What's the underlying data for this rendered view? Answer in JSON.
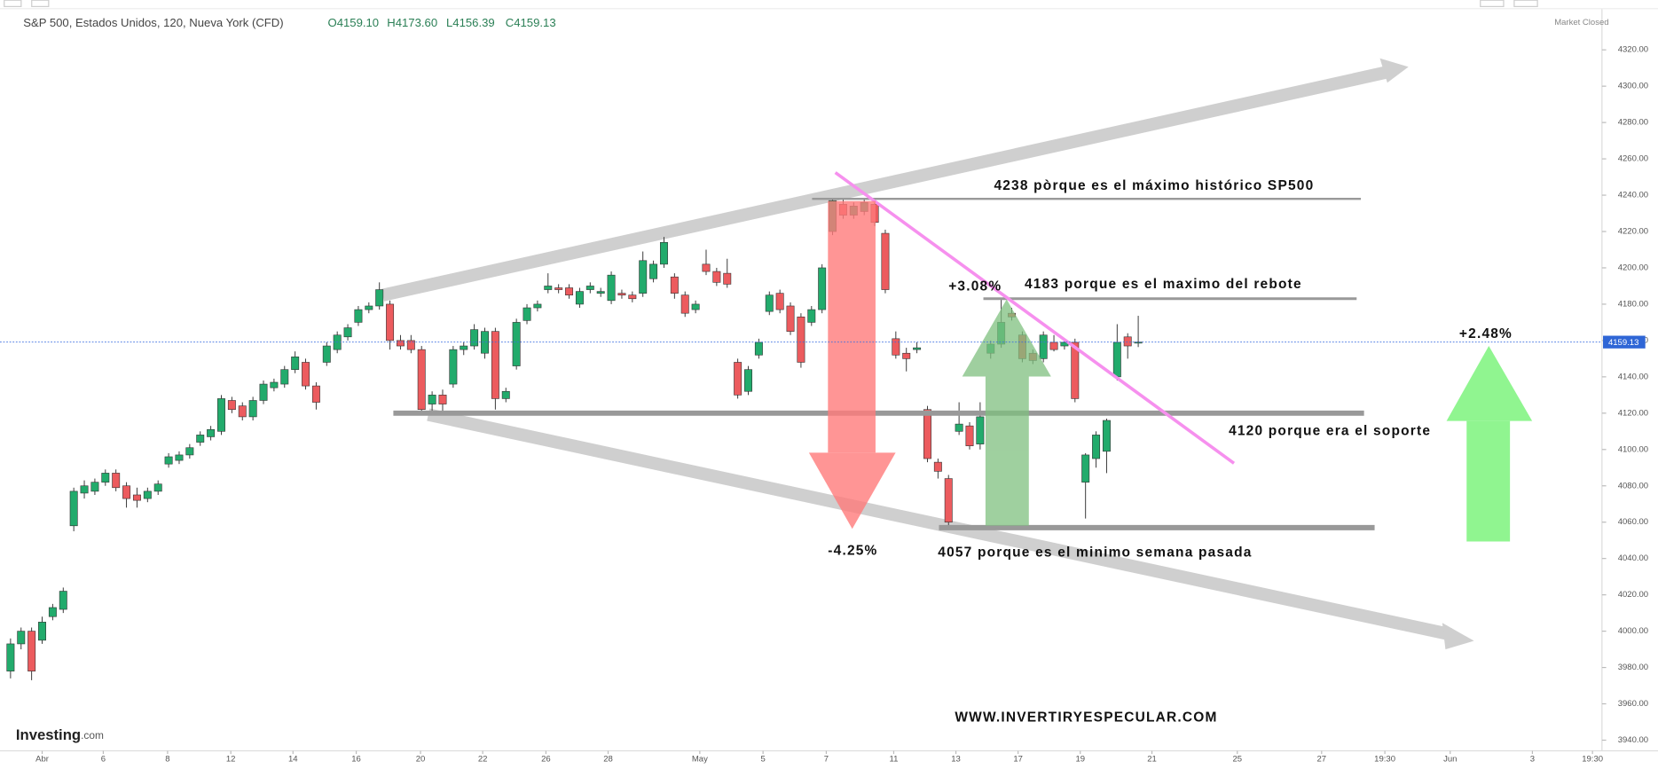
{
  "chart_data": {
    "type": "candlestick",
    "title": "S&P 500, Estados Unidos, 120, Nueva York (CFD)",
    "ohlc_labels": [
      "O4159.10",
      "H4173.60",
      "L4156.39",
      "C4159.13"
    ],
    "status": "Market Closed",
    "brand": "Investing",
    "brand_suffix": ".com",
    "up_color": "#22ab6c",
    "down_color": "#ec5b5e",
    "x": [
      0,
      1,
      2,
      3,
      4,
      5,
      6,
      7,
      8,
      9,
      10,
      11,
      12,
      13,
      14,
      15,
      16,
      17,
      18,
      19,
      20,
      21,
      22,
      23,
      24,
      25,
      26,
      27,
      28,
      29,
      30,
      31,
      32,
      33,
      34,
      35,
      36,
      37,
      38,
      39,
      40,
      41,
      42,
      43,
      44,
      45,
      46,
      47,
      48,
      49,
      50,
      51,
      52,
      53,
      54,
      55,
      56,
      57,
      58,
      59,
      60,
      61,
      62,
      63,
      64,
      65,
      66,
      67,
      68,
      69,
      70,
      71,
      72,
      73,
      74,
      75,
      76,
      77,
      78,
      79,
      80,
      81,
      82,
      83,
      84,
      85,
      86,
      87,
      88,
      89,
      90,
      91,
      92,
      93,
      94,
      95,
      96,
      97,
      98,
      99,
      100,
      101,
      102,
      103,
      104,
      105,
      106,
      107
    ],
    "open": [
      3978,
      3993,
      4000,
      3995,
      4008,
      4012,
      4058,
      4076,
      4077,
      4082,
      4087,
      4080,
      4075,
      4073,
      4077,
      4092,
      4094,
      4097,
      4104,
      4107,
      4110,
      4127,
      4124,
      4118,
      4127,
      4134,
      4136,
      4144,
      4148,
      4135,
      4148,
      4155,
      4162,
      4170,
      4177,
      4179,
      4180,
      4160,
      4160,
      4155,
      4125,
      4130,
      4136,
      4155,
      4157,
      4153,
      4165,
      4128,
      4146,
      4171,
      4178,
      4188,
      4189,
      4189,
      4180,
      4188,
      4186,
      4182,
      4186,
      4185,
      4186,
      4194,
      4202,
      4195,
      4185,
      4177,
      4202,
      4198,
      4197,
      4148,
      4132,
      4152,
      4176,
      4186,
      4179,
      4173,
      4170,
      4177,
      4220,
      4235,
      4229,
      4231,
      4235,
      4219,
      4161,
      4153,
      4155,
      4122,
      4093,
      4084,
      4110,
      4113,
      4103,
      4153,
      4158,
      4175,
      4163,
      4153,
      4150,
      4159,
      4157,
      4159,
      4082,
      4095,
      4099,
      4140,
      4162,
      4159.1
    ],
    "high": [
      3996,
      4002,
      4002,
      4008,
      4015,
      4024,
      4079,
      4083,
      4084,
      4089,
      4089,
      4082,
      4079,
      4079,
      4083,
      4098,
      4099,
      4103,
      4110,
      4113,
      4130,
      4129,
      4126,
      4129,
      4138,
      4139,
      4146,
      4154,
      4150,
      4137,
      4159,
      4165,
      4169,
      4179,
      4181,
      4192,
      4182,
      4163,
      4163,
      4157,
      4132,
      4133,
      4157,
      4159,
      4169,
      4167,
      4167,
      4134,
      4172,
      4180,
      4182,
      4197,
      4191,
      4191,
      4189,
      4192,
      4189,
      4198,
      4188,
      4187,
      4209,
      4204,
      4217,
      4197,
      4187,
      4182,
      4210,
      4200,
      4205,
      4150,
      4146,
      4161,
      4187,
      4188,
      4181,
      4175,
      4179,
      4202,
      4238,
      4238,
      4236,
      4238,
      4237,
      4221,
      4165,
      4156,
      4159,
      4124,
      4095,
      4086,
      4126,
      4115,
      4126,
      4160,
      4183,
      4178,
      4165,
      4155,
      4165,
      4163,
      4161,
      4161,
      4098,
      4110,
      4117,
      4169,
      4164,
      4173.6
    ],
    "low": [
      3974,
      3990,
      3973,
      3993,
      4006,
      4010,
      4055,
      4073,
      4075,
      4080,
      4077,
      4068,
      4068,
      4071,
      4075,
      4090,
      4092,
      4095,
      4102,
      4105,
      4108,
      4120,
      4116,
      4116,
      4125,
      4132,
      4134,
      4142,
      4133,
      4122,
      4146,
      4153,
      4160,
      4168,
      4175,
      4177,
      4155,
      4155,
      4153,
      4119,
      4119,
      4121,
      4134,
      4152,
      4155,
      4150,
      4122,
      4126,
      4144,
      4169,
      4176,
      4186,
      4186,
      4183,
      4178,
      4186,
      4184,
      4180,
      4183,
      4181,
      4184,
      4192,
      4200,
      4183,
      4173,
      4175,
      4196,
      4190,
      4189,
      4128,
      4130,
      4150,
      4174,
      4175,
      4163,
      4145,
      4168,
      4175,
      4218,
      4227,
      4227,
      4229,
      4223,
      4186,
      4150,
      4143,
      4153,
      4093,
      4084,
      4057,
      4108,
      4100,
      4100,
      4150,
      4156,
      4171,
      4148,
      4147,
      4148,
      4154,
      4155,
      4126,
      4062,
      4090,
      4087,
      4138,
      4150,
      4156.39
    ],
    "close": [
      3993,
      4000,
      3978,
      4005,
      4013,
      4022,
      4077,
      4080,
      4082,
      4087,
      4079,
      4073,
      4072,
      4077,
      4081,
      4096,
      4097,
      4101,
      4108,
      4111,
      4128,
      4122,
      4118,
      4127,
      4136,
      4137,
      4144,
      4151,
      4135,
      4126,
      4157,
      4163,
      4167,
      4177,
      4179,
      4188,
      4160,
      4157,
      4155,
      4122,
      4130,
      4125,
      4155,
      4157,
      4166,
      4165,
      4128,
      4132,
      4170,
      4178,
      4180,
      4190,
      4188,
      4185,
      4187,
      4190,
      4187,
      4196,
      4185,
      4183,
      4204,
      4202,
      4214,
      4186,
      4175,
      4180,
      4198,
      4192,
      4191,
      4130,
      4144,
      4159,
      4185,
      4177,
      4165,
      4148,
      4177,
      4200,
      4237,
      4229,
      4234,
      4236,
      4225,
      4188,
      4152,
      4150,
      4156,
      4095,
      4088,
      4060,
      4114,
      4102,
      4118,
      4158,
      4170,
      4173,
      4150,
      4149,
      4163,
      4155,
      4159,
      4128,
      4097,
      4108,
      4116,
      4159,
      4157,
      4159.13
    ],
    "last_price": {
      "value": 4159.13,
      "label": "4159.13"
    },
    "levels": [
      4238,
      4183,
      4120,
      4057
    ],
    "annotations": [
      "4238 pòrque es el máximo histórico SP500",
      "4183 porque es el maximo del rebote",
      "+3.08%",
      "+2.48%",
      "4120 porque era el soporte",
      "-4.25%",
      "4057 porque es el minimo semana pasada",
      "WWW.INVERTIRYESPECULAR.COM"
    ],
    "xlim": [
      -1,
      151
    ],
    "xticks": [
      {
        "value": 3.0,
        "label": "Abr"
      },
      {
        "value": 8.8,
        "label": "6"
      },
      {
        "value": 14.9,
        "label": "8"
      },
      {
        "value": 20.9,
        "label": "12"
      },
      {
        "value": 26.8,
        "label": "14"
      },
      {
        "value": 32.8,
        "label": "16"
      },
      {
        "value": 38.9,
        "label": "20"
      },
      {
        "value": 44.8,
        "label": "22"
      },
      {
        "value": 50.8,
        "label": "26"
      },
      {
        "value": 56.7,
        "label": "28"
      },
      {
        "value": 65.4,
        "label": "May"
      },
      {
        "value": 71.4,
        "label": "5"
      },
      {
        "value": 77.4,
        "label": "7"
      },
      {
        "value": 83.8,
        "label": "11"
      },
      {
        "value": 89.7,
        "label": "13"
      },
      {
        "value": 95.6,
        "label": "17"
      },
      {
        "value": 101.5,
        "label": "19"
      },
      {
        "value": 108.3,
        "label": "21"
      },
      {
        "value": 116.4,
        "label": "25"
      },
      {
        "value": 124.4,
        "label": "27"
      },
      {
        "value": 130.4,
        "label": "19:30"
      },
      {
        "value": 136.6,
        "label": "Jun"
      },
      {
        "value": 144.4,
        "label": "3"
      },
      {
        "value": 150.1,
        "label": "19:30"
      }
    ],
    "ylim": [
      3935,
      4345
    ],
    "yticks": [
      {
        "value": 3940,
        "label": "3940.00"
      },
      {
        "value": 3960,
        "label": "3960.00"
      },
      {
        "value": 3980,
        "label": "3980.00"
      },
      {
        "value": 4000,
        "label": "4000.00"
      },
      {
        "value": 4020,
        "label": "4020.00"
      },
      {
        "value": 4040,
        "label": "4040.00"
      },
      {
        "value": 4060,
        "label": "4060.00"
      },
      {
        "value": 4080,
        "label": "4080.00"
      },
      {
        "value": 4100,
        "label": "4100.00"
      },
      {
        "value": 4120,
        "label": "4120.00"
      },
      {
        "value": 4140,
        "label": "4140.00"
      },
      {
        "value": 4160,
        "label": "4160.00"
      },
      {
        "value": 4180,
        "label": "4180.00"
      },
      {
        "value": 4200,
        "label": "4200.00"
      },
      {
        "value": 4220,
        "label": "4220.00"
      },
      {
        "value": 4240,
        "label": "4240.00"
      },
      {
        "value": 4260,
        "label": "4260.00"
      },
      {
        "value": 4280,
        "label": "4280.00"
      },
      {
        "value": 4300,
        "label": "4300.00"
      },
      {
        "value": 4320,
        "label": "4320.00"
      }
    ]
  }
}
